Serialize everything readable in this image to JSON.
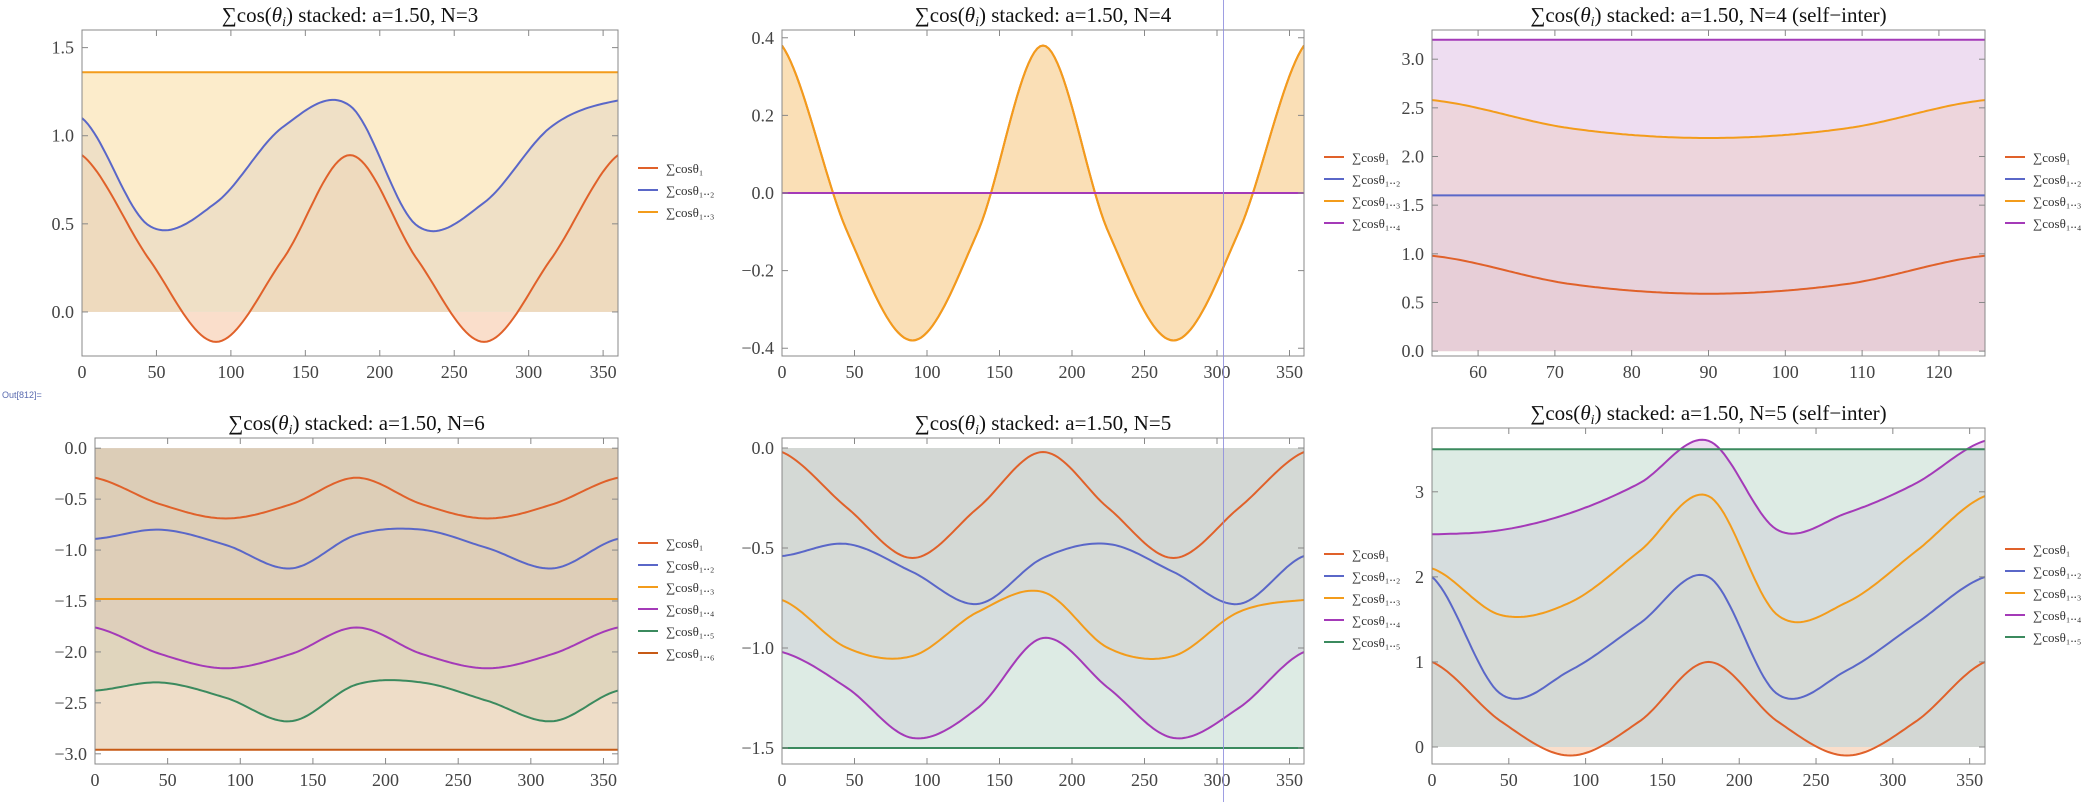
{
  "cell_label": "Out[812]=",
  "legend_prefix": "∑cos",
  "theme": {
    "series_colors": [
      "#e0612a",
      "#5a67c8",
      "#f39c1b",
      "#a43ab8",
      "#3b8a5e",
      "#c75a15"
    ],
    "fill_colors": [
      "#f6c8a8",
      "#c9cceb",
      "#fae0a8",
      "#e3c6e7",
      "#c7ddd2",
      "#e3c6a3"
    ]
  },
  "chart_data": [
    {
      "type": "area",
      "title": "∑cos(θ_i) stacked: a=1.50, N=3",
      "xlabel": "",
      "ylabel": "",
      "xlim": [
        0,
        360
      ],
      "ylim": [
        -0.25,
        1.6
      ],
      "x_ticks": [
        0,
        50,
        100,
        150,
        200,
        250,
        300,
        350
      ],
      "y_ticks": [
        0.0,
        0.5,
        1.0,
        1.5
      ],
      "y_tick_labels": [
        "0.0",
        "0.5",
        "1.0",
        "1.5"
      ],
      "x": [
        0,
        45,
        90,
        135,
        180,
        225,
        270,
        315,
        360
      ],
      "series": [
        {
          "name": "∑cosθ₁",
          "values": [
            0.89,
            0.3,
            -0.17,
            0.3,
            0.89,
            0.3,
            -0.17,
            0.3,
            0.89
          ]
        },
        {
          "name": "∑cosθ₁..₂",
          "values": [
            1.1,
            0.49,
            0.62,
            1.05,
            1.17,
            0.49,
            0.62,
            1.05,
            1.2
          ]
        },
        {
          "name": "∑cosθ₁..₃",
          "values": [
            1.36,
            1.36,
            1.36,
            1.36,
            1.36,
            1.36,
            1.36,
            1.36,
            1.36
          ]
        }
      ],
      "grid": false,
      "legend": "right"
    },
    {
      "type": "area",
      "title": "∑cos(θ_i) stacked: a=1.50, N=4",
      "xlabel": "",
      "ylabel": "",
      "xlim": [
        0,
        360
      ],
      "ylim": [
        -0.42,
        0.42
      ],
      "x_ticks": [
        0,
        50,
        100,
        150,
        200,
        250,
        300,
        350
      ],
      "y_ticks": [
        -0.4,
        -0.2,
        0.0,
        0.2,
        0.4
      ],
      "y_tick_labels": [
        "−0.4",
        "−0.2",
        "0.0",
        "0.2",
        "0.4"
      ],
      "x": [
        0,
        45,
        90,
        135,
        180,
        225,
        270,
        315,
        360
      ],
      "series": [
        {
          "name": "∑cosθ₁",
          "values": [
            0.38,
            -0.1,
            -0.38,
            -0.1,
            0.38,
            -0.1,
            -0.38,
            -0.1,
            0.38
          ]
        },
        {
          "name": "∑cosθ₁..₂",
          "values": [
            0,
            0,
            0,
            0,
            0,
            0,
            0,
            0,
            0
          ]
        },
        {
          "name": "∑cosθ₁..₃",
          "values": [
            0.38,
            -0.1,
            -0.38,
            -0.1,
            0.38,
            -0.1,
            -0.38,
            -0.1,
            0.38
          ]
        },
        {
          "name": "∑cosθ₁..₄",
          "values": [
            0,
            0,
            0,
            0,
            0,
            0,
            0,
            0,
            0
          ]
        }
      ],
      "grid": false,
      "legend": "right"
    },
    {
      "type": "area",
      "title": "∑cos(θ_i) stacked: a=1.50, N=4 (self−inter)",
      "xlabel": "",
      "ylabel": "",
      "xlim": [
        54,
        126
      ],
      "ylim": [
        -0.05,
        3.3
      ],
      "x_ticks": [
        60,
        70,
        80,
        90,
        100,
        110,
        120
      ],
      "y_ticks": [
        0.0,
        0.5,
        1.0,
        1.5,
        2.0,
        2.5,
        3.0
      ],
      "y_tick_labels": [
        "0.0",
        "0.5",
        "1.0",
        "1.5",
        "2.0",
        "2.5",
        "3.0"
      ],
      "x": [
        54,
        72,
        90,
        108,
        126
      ],
      "series": [
        {
          "name": "∑cosθ₁",
          "values": [
            0.98,
            0.69,
            0.59,
            0.69,
            0.98
          ]
        },
        {
          "name": "∑cosθ₁..₂",
          "values": [
            1.6,
            1.6,
            1.6,
            1.6,
            1.6
          ]
        },
        {
          "name": "∑cosθ₁..₃",
          "values": [
            2.58,
            2.29,
            2.19,
            2.29,
            2.58
          ]
        },
        {
          "name": "∑cosθ₁..₄",
          "values": [
            3.2,
            3.2,
            3.2,
            3.2,
            3.2
          ]
        }
      ],
      "grid": false,
      "legend": "right"
    },
    {
      "type": "area",
      "title": "∑cos(θ_i) stacked: a=1.50, N=6",
      "xlabel": "",
      "ylabel": "",
      "xlim": [
        0,
        360
      ],
      "ylim": [
        -3.1,
        0.1
      ],
      "x_ticks": [
        0,
        50,
        100,
        150,
        200,
        250,
        300,
        350
      ],
      "y_ticks": [
        -3.0,
        -2.5,
        -2.0,
        -1.5,
        -1.0,
        -0.5,
        0.0
      ],
      "y_tick_labels": [
        "−3.0",
        "−2.5",
        "−2.0",
        "−1.5",
        "−1.0",
        "−0.5",
        "0.0"
      ],
      "x": [
        0,
        45,
        90,
        135,
        180,
        225,
        270,
        315,
        360
      ],
      "series": [
        {
          "name": "∑cosθ₁",
          "values": [
            -0.29,
            -0.55,
            -0.69,
            -0.55,
            -0.29,
            -0.55,
            -0.69,
            -0.55,
            -0.29
          ]
        },
        {
          "name": "∑cosθ₁..₂",
          "values": [
            -0.89,
            -0.8,
            -0.95,
            -1.18,
            -0.85,
            -0.8,
            -0.98,
            -1.18,
            -0.89
          ]
        },
        {
          "name": "∑cosθ₁..₃",
          "values": [
            -1.48,
            -1.48,
            -1.48,
            -1.48,
            -1.48,
            -1.48,
            -1.48,
            -1.48,
            -1.48
          ]
        },
        {
          "name": "∑cosθ₁..₄",
          "values": [
            -1.76,
            -2.02,
            -2.16,
            -2.02,
            -1.76,
            -2.02,
            -2.16,
            -2.02,
            -1.76
          ]
        },
        {
          "name": "∑cosθ₁..₅",
          "values": [
            -2.38,
            -2.3,
            -2.45,
            -2.68,
            -2.32,
            -2.3,
            -2.48,
            -2.68,
            -2.38
          ]
        },
        {
          "name": "∑cosθ₁..₆",
          "values": [
            -2.96,
            -2.96,
            -2.96,
            -2.96,
            -2.96,
            -2.96,
            -2.96,
            -2.96,
            -2.96
          ]
        }
      ],
      "grid": false,
      "legend": "right"
    },
    {
      "type": "area",
      "title": "∑cos(θ_i) stacked: a=1.50, N=5",
      "xlabel": "",
      "ylabel": "",
      "xlim": [
        0,
        360
      ],
      "ylim": [
        -1.58,
        0.05
      ],
      "x_ticks": [
        0,
        50,
        100,
        150,
        200,
        250,
        300,
        350
      ],
      "y_ticks": [
        -1.5,
        -1.0,
        -0.5,
        0.0
      ],
      "y_tick_labels": [
        "−1.5",
        "−1.0",
        "−0.5",
        "0.0"
      ],
      "x": [
        0,
        45,
        90,
        135,
        180,
        225,
        270,
        315,
        360
      ],
      "series": [
        {
          "name": "∑cosθ₁",
          "values": [
            -0.02,
            -0.3,
            -0.55,
            -0.3,
            -0.02,
            -0.3,
            -0.55,
            -0.3,
            -0.02
          ]
        },
        {
          "name": "∑cosθ₁..₂",
          "values": [
            -0.54,
            -0.48,
            -0.62,
            -0.78,
            -0.55,
            -0.48,
            -0.62,
            -0.78,
            -0.54
          ]
        },
        {
          "name": "∑cosθ₁..₃",
          "values": [
            -0.76,
            -1.0,
            -1.04,
            -0.82,
            -0.72,
            -1.0,
            -1.04,
            -0.82,
            -0.76
          ]
        },
        {
          "name": "∑cosθ₁..₄",
          "values": [
            -1.02,
            -1.2,
            -1.45,
            -1.3,
            -0.95,
            -1.2,
            -1.45,
            -1.3,
            -1.02
          ]
        },
        {
          "name": "∑cosθ₁..₅",
          "values": [
            -1.5,
            -1.5,
            -1.5,
            -1.5,
            -1.5,
            -1.5,
            -1.5,
            -1.5,
            -1.5
          ]
        }
      ],
      "grid": false,
      "legend": "right"
    },
    {
      "type": "area",
      "title": "∑cos(θ_i) stacked: a=1.50, N=5 (self−inter)",
      "xlabel": "",
      "ylabel": "",
      "xlim": [
        0,
        360
      ],
      "ylim": [
        -0.2,
        3.75
      ],
      "x_ticks": [
        0,
        50,
        100,
        150,
        200,
        250,
        300,
        350
      ],
      "y_ticks": [
        0,
        1,
        2,
        3
      ],
      "y_tick_labels": [
        "0",
        "1",
        "2",
        "3"
      ],
      "x": [
        0,
        45,
        90,
        135,
        180,
        225,
        270,
        315,
        360
      ],
      "series": [
        {
          "name": "∑cosθ₁",
          "values": [
            1.0,
            0.3,
            -0.1,
            0.3,
            1.0,
            0.3,
            -0.1,
            0.3,
            1.0
          ]
        },
        {
          "name": "∑cosθ₁..₂",
          "values": [
            2.0,
            0.62,
            0.9,
            1.45,
            2.0,
            0.62,
            0.9,
            1.45,
            2.0
          ]
        },
        {
          "name": "∑cosθ₁..₃",
          "values": [
            2.1,
            1.55,
            1.7,
            2.3,
            2.95,
            1.55,
            1.7,
            2.3,
            2.95
          ]
        },
        {
          "name": "∑cosθ₁..₄",
          "values": [
            2.5,
            2.55,
            2.75,
            3.1,
            3.6,
            2.55,
            2.75,
            3.1,
            3.6
          ]
        },
        {
          "name": "∑cosθ₁..₅",
          "values": [
            3.5,
            3.5,
            3.5,
            3.5,
            3.5,
            3.5,
            3.5,
            3.5,
            3.5
          ]
        }
      ],
      "grid": false,
      "legend": "right"
    }
  ]
}
